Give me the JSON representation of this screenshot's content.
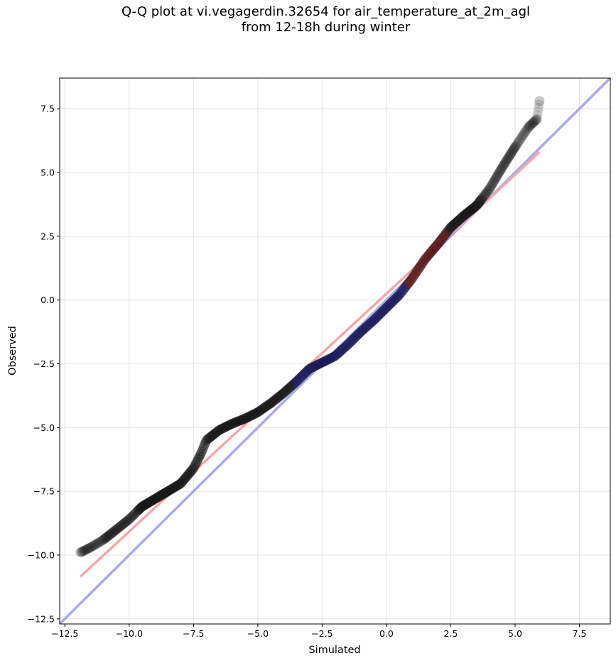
{
  "chart_data": {
    "type": "scatter",
    "title": "Q-Q plot at vi.vegagerdin.32654 for air_temperature_at_2m_agl",
    "subtitle": "from 12-18h during winter",
    "xlabel": "Simulated",
    "ylabel": "Observed",
    "xlim": [
      -12.7,
      8.7
    ],
    "ylim": [
      -12.7,
      8.7
    ],
    "grid": true,
    "x_ticks": [
      -12.5,
      -10.0,
      -7.5,
      -5.0,
      -2.5,
      0.0,
      2.5,
      5.0,
      7.5
    ],
    "x_tick_labels": [
      "−12.5",
      "−10.0",
      "−7.5",
      "−5.0",
      "−2.5",
      "0.0",
      "2.5",
      "5.0",
      "7.5"
    ],
    "y_ticks": [
      -12.5,
      -10.0,
      -7.5,
      -5.0,
      -2.5,
      0.0,
      2.5,
      5.0,
      7.5
    ],
    "y_tick_labels": [
      "−12.5",
      "−10.0",
      "−7.5",
      "−5.0",
      "−2.5",
      "0.0",
      "2.5",
      "5.0",
      "7.5"
    ],
    "quantile_curve": [
      [
        -11.9,
        -9.9
      ],
      [
        -11.5,
        -9.7
      ],
      [
        -11.0,
        -9.4
      ],
      [
        -10.5,
        -9.0
      ],
      [
        -10.0,
        -8.6
      ],
      [
        -9.5,
        -8.1
      ],
      [
        -9.0,
        -7.8
      ],
      [
        -8.5,
        -7.5
      ],
      [
        -8.0,
        -7.2
      ],
      [
        -7.5,
        -6.6
      ],
      [
        -7.2,
        -6.0
      ],
      [
        -7.0,
        -5.5
      ],
      [
        -6.5,
        -5.1
      ],
      [
        -6.0,
        -4.85
      ],
      [
        -5.5,
        -4.65
      ],
      [
        -5.0,
        -4.4
      ],
      [
        -4.5,
        -4.05
      ],
      [
        -4.0,
        -3.65
      ],
      [
        -3.5,
        -3.2
      ],
      [
        -3.0,
        -2.7
      ],
      [
        -2.5,
        -2.45
      ],
      [
        -2.0,
        -2.2
      ],
      [
        -1.5,
        -1.75
      ],
      [
        -1.0,
        -1.25
      ],
      [
        -0.5,
        -0.8
      ],
      [
        0.0,
        -0.3
      ],
      [
        0.5,
        0.2
      ],
      [
        1.0,
        0.85
      ],
      [
        1.5,
        1.6
      ],
      [
        2.0,
        2.2
      ],
      [
        2.5,
        2.85
      ],
      [
        3.0,
        3.3
      ],
      [
        3.5,
        3.7
      ],
      [
        4.0,
        4.35
      ],
      [
        4.5,
        5.2
      ],
      [
        5.0,
        6.0
      ],
      [
        5.5,
        6.75
      ],
      [
        5.85,
        7.1
      ],
      [
        5.95,
        7.8
      ]
    ],
    "reference_line": {
      "color": "#a8a8f5",
      "from": [
        -12.7,
        -12.7
      ],
      "to": [
        8.7,
        8.7
      ]
    },
    "fit_line": {
      "color": "#f4a3a3",
      "from": [
        -11.9,
        -10.85
      ],
      "to": [
        5.95,
        5.8
      ]
    },
    "colors": {
      "points": "#1a1a1a",
      "center_band_low": "#1a1a66",
      "center_band_high": "#661a1a"
    }
  }
}
